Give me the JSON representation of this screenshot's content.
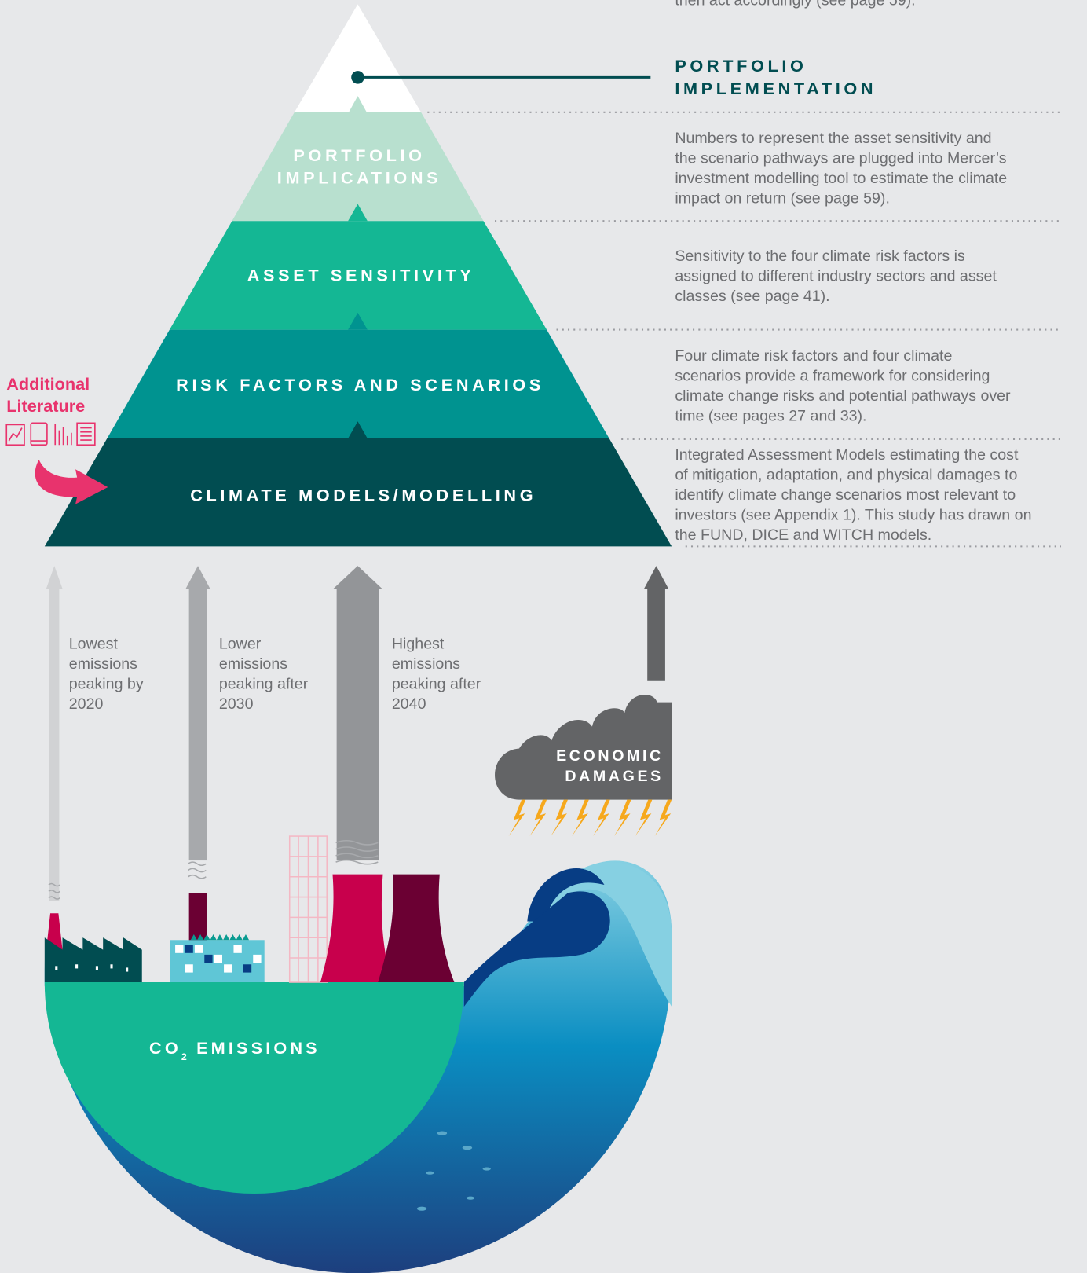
{
  "top_note": "then act accordingly (see page 59).",
  "pyramid": {
    "apex_label": [
      "PORTFOLIO",
      "IMPLEMENTATION"
    ],
    "layers": [
      {
        "label": [
          "PORTFOLIO",
          "IMPLICATIONS"
        ],
        "description": [
          "Numbers to represent the asset sensitivity and",
          "the scenario pathways are plugged into Mercer’s",
          "investment modelling tool to estimate the climate",
          "impact on return (see page 59)."
        ]
      },
      {
        "label": [
          "ASSET SENSITIVITY"
        ],
        "description": [
          "Sensitivity to the four climate risk factors is",
          "assigned to different industry sectors and asset",
          "classes (see page 41)."
        ]
      },
      {
        "label": [
          "RISK FACTORS AND SCENARIOS"
        ],
        "description": [
          "Four climate risk factors and four climate",
          "scenarios provide a framework for considering",
          "climate change risks and potential pathways over",
          "time (see pages 27 and 33)."
        ]
      },
      {
        "label": [
          "CLIMATE MODELS/MODELLING"
        ],
        "description": [
          "Integrated Assessment Models estimating the cost",
          "of mitigation, adaptation, and physical damages to",
          "identify climate change scenarios most relevant to",
          "investors (see Appendix 1). This study has drawn on",
          "the FUND, DICE and WITCH models."
        ]
      }
    ]
  },
  "additional_literature": [
    "Additional",
    "Literature"
  ],
  "emission_arrows": [
    {
      "label": [
        "Lowest",
        "emissions",
        "peaking by",
        "2020"
      ]
    },
    {
      "label": [
        "Lower",
        "emissions",
        "peaking after",
        "2030"
      ]
    },
    {
      "label": [
        "Highest",
        "emissions",
        "peaking after",
        "2040"
      ]
    }
  ],
  "economic_damages": [
    "ECONOMIC",
    "DAMAGES"
  ],
  "co2_emissions": {
    "base": "CO",
    "sub": "2",
    "rest": "EMISSIONS"
  }
}
